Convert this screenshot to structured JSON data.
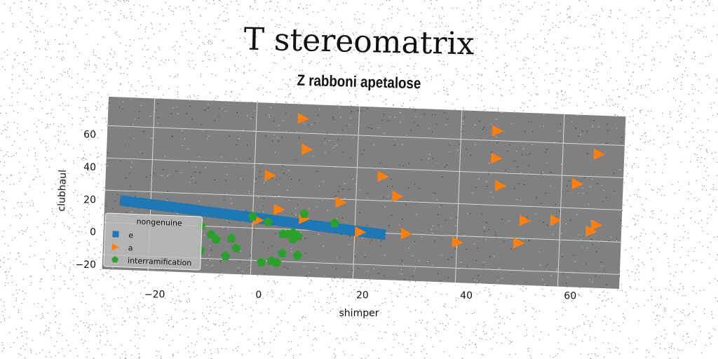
{
  "chart_data": {
    "type": "scatter",
    "title": "T stereomatrix",
    "subtitle": "Z rabboni apetalose",
    "xlabel": "shimper",
    "ylabel": "clubhaul",
    "xlim": [
      -29,
      72
    ],
    "ylim": [
      -29,
      78
    ],
    "xticks": [
      -20,
      0,
      20,
      40,
      60
    ],
    "yticks": [
      -20,
      0,
      20,
      40,
      60
    ],
    "grid": true,
    "legend": {
      "title": "nongenuine",
      "placement": "lower-left"
    },
    "colors": {
      "plot_bg": "#808080",
      "e": "#1f77b4",
      "a": "#ff7f0e",
      "interramification": "#2ca02c"
    },
    "series": [
      {
        "name": "e",
        "marker": "square",
        "type": "line",
        "x": [
          -26,
          26
        ],
        "y": [
          14,
          -1
        ]
      },
      {
        "name": "a",
        "marker": "triangle-right",
        "x": [
          9,
          10,
          3,
          25,
          28,
          17,
          5,
          1,
          10,
          21,
          30,
          40,
          47,
          47,
          48,
          52,
          53,
          59,
          63,
          66,
          67,
          67
        ],
        "y": [
          69,
          50,
          33,
          35,
          23,
          18,
          12,
          5,
          7,
          0,
          0,
          -4,
          66,
          49,
          32,
          -3,
          11,
          12,
          35,
          6,
          10,
          54
        ]
      },
      {
        "name": "interramification",
        "marker": "pentagon",
        "x": [
          -10,
          -8,
          -7,
          -4,
          -3,
          -10,
          -5,
          0,
          3,
          5,
          6,
          7,
          8,
          9,
          9,
          6,
          4,
          8,
          2,
          10,
          16
        ],
        "y": [
          0,
          -5,
          -8,
          -7,
          -13,
          -15,
          -18,
          7,
          4,
          -21,
          -15,
          -3,
          -6,
          -4,
          -16,
          -3,
          -20,
          -2,
          -21,
          10,
          5
        ]
      }
    ]
  }
}
